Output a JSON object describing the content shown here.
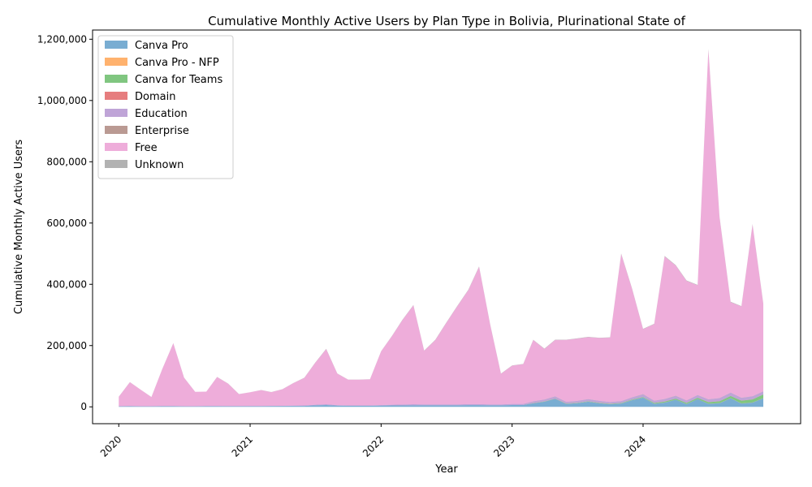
{
  "chart_data": {
    "type": "area",
    "stacked": true,
    "title": "Cumulative Monthly Active Users by Plan Type in Bolivia, Plurinational State of",
    "xlabel": "Year",
    "ylabel": "Cumulative Monthly Active Users",
    "xlim": [
      "2019-10-20",
      "2025-03-15"
    ],
    "ylim": [
      -55000,
      1230000
    ],
    "x_ticks": [
      {
        "date": "2020-01-01",
        "label": "2020"
      },
      {
        "date": "2021-01-01",
        "label": "2021"
      },
      {
        "date": "2022-01-01",
        "label": "2022"
      },
      {
        "date": "2023-01-01",
        "label": "2023"
      },
      {
        "date": "2024-01-01",
        "label": "2024"
      }
    ],
    "y_ticks": [
      {
        "value": 0,
        "label": "0"
      },
      {
        "value": 200000,
        "label": "200,000"
      },
      {
        "value": 400000,
        "label": "400,000"
      },
      {
        "value": 600000,
        "label": "600,000"
      },
      {
        "value": 800000,
        "label": "800,000"
      },
      {
        "value": 1000000,
        "label": "1,000,000"
      },
      {
        "value": 1200000,
        "label": "1,200,000"
      }
    ],
    "legend_position": "top-left",
    "x": [
      "2020-01",
      "2020-02",
      "2020-03",
      "2020-04",
      "2020-05",
      "2020-06",
      "2020-07",
      "2020-08",
      "2020-09",
      "2020-10",
      "2020-11",
      "2020-12",
      "2021-01",
      "2021-02",
      "2021-03",
      "2021-04",
      "2021-05",
      "2021-06",
      "2021-07",
      "2021-08",
      "2021-09",
      "2021-10",
      "2021-11",
      "2021-12",
      "2022-01",
      "2022-02",
      "2022-03",
      "2022-04",
      "2022-05",
      "2022-06",
      "2022-07",
      "2022-08",
      "2022-09",
      "2022-10",
      "2022-11",
      "2022-12",
      "2023-01",
      "2023-02",
      "2023-03",
      "2023-04",
      "2023-05",
      "2023-06",
      "2023-07",
      "2023-08",
      "2023-09",
      "2023-10",
      "2023-11",
      "2023-12",
      "2024-01",
      "2024-02",
      "2024-03",
      "2024-04",
      "2024-05",
      "2024-06",
      "2024-07",
      "2024-08",
      "2024-09",
      "2024-10",
      "2024-11",
      "2024-12"
    ],
    "series": [
      {
        "name": "Canva Pro",
        "color": "#1f77b4",
        "values": [
          1500,
          2000,
          1500,
          1500,
          2000,
          2000,
          1500,
          1500,
          2000,
          2000,
          2000,
          2000,
          2000,
          2000,
          2500,
          2500,
          3000,
          3000,
          5000,
          6000,
          4000,
          3500,
          3500,
          3500,
          4000,
          4500,
          4500,
          5000,
          5000,
          5000,
          5000,
          5000,
          5500,
          5500,
          5000,
          5000,
          6000,
          6000,
          12000,
          17000,
          26000,
          10000,
          12000,
          17000,
          12000,
          9000,
          11000,
          22000,
          30000,
          10000,
          14000,
          23000,
          9000,
          25000,
          10000,
          12000,
          28000,
          11000,
          14000,
          28000
        ]
      },
      {
        "name": "Canva Pro - NFP",
        "color": "#ff7f0e",
        "values": [
          0,
          0,
          0,
          0,
          0,
          0,
          0,
          0,
          0,
          0,
          0,
          0,
          0,
          0,
          0,
          0,
          0,
          0,
          0,
          0,
          0,
          0,
          0,
          0,
          0,
          0,
          0,
          0,
          0,
          0,
          0,
          0,
          0,
          0,
          0,
          0,
          0,
          0,
          200,
          200,
          200,
          200,
          200,
          200,
          200,
          200,
          200,
          200,
          300,
          300,
          300,
          300,
          300,
          300,
          300,
          300,
          300,
          300,
          300,
          300
        ]
      },
      {
        "name": "Canva for Teams",
        "color": "#2ca02c",
        "values": [
          0,
          0,
          0,
          0,
          0,
          0,
          0,
          0,
          0,
          0,
          0,
          0,
          0,
          0,
          0,
          0,
          0,
          0,
          0,
          0,
          0,
          0,
          0,
          0,
          0,
          0,
          0,
          0,
          0,
          0,
          0,
          0,
          0,
          0,
          0,
          0,
          0,
          0,
          500,
          600,
          700,
          800,
          900,
          1000,
          1100,
          1200,
          1300,
          1500,
          1800,
          2500,
          3000,
          3500,
          3500,
          4000,
          5000,
          6000,
          7000,
          9000,
          10000,
          12000
        ]
      },
      {
        "name": "Domain",
        "color": "#d62728",
        "values": [
          0,
          0,
          0,
          0,
          0,
          0,
          0,
          0,
          0,
          0,
          0,
          0,
          0,
          0,
          0,
          0,
          0,
          0,
          0,
          0,
          0,
          0,
          0,
          0,
          0,
          0,
          0,
          0,
          0,
          0,
          0,
          0,
          0,
          0,
          0,
          0,
          0,
          0,
          100,
          100,
          100,
          100,
          100,
          100,
          100,
          100,
          100,
          100,
          100,
          100,
          100,
          100,
          100,
          100,
          100,
          100,
          100,
          100,
          100,
          100
        ]
      },
      {
        "name": "Education",
        "color": "#9467bd",
        "values": [
          300,
          500,
          400,
          300,
          500,
          500,
          400,
          400,
          500,
          500,
          400,
          400,
          500,
          500,
          600,
          800,
          1000,
          1500,
          2000,
          2500,
          1500,
          1200,
          1200,
          1200,
          2000,
          2500,
          3000,
          3500,
          3000,
          3000,
          3000,
          3000,
          3500,
          3500,
          3000,
          3000,
          3500,
          3500,
          5000,
          6000,
          7000,
          5000,
          6000,
          7000,
          6000,
          5000,
          6000,
          7000,
          9000,
          7000,
          8000,
          9000,
          8000,
          9000,
          9000,
          10000,
          11000,
          9000,
          10000,
          10000
        ]
      },
      {
        "name": "Enterprise",
        "color": "#8c564b",
        "values": [
          0,
          0,
          0,
          0,
          0,
          0,
          0,
          0,
          0,
          0,
          0,
          0,
          0,
          0,
          0,
          0,
          0,
          0,
          0,
          0,
          0,
          0,
          0,
          0,
          0,
          0,
          0,
          0,
          0,
          0,
          0,
          0,
          0,
          0,
          0,
          0,
          0,
          0,
          300,
          300,
          300,
          300,
          300,
          300,
          300,
          300,
          300,
          300,
          400,
          400,
          400,
          400,
          400,
          400,
          400,
          400,
          400,
          400,
          400,
          400
        ]
      },
      {
        "name": "Free",
        "color": "#e377c2",
        "values": [
          31000,
          78000,
          55000,
          30000,
          120000,
          205000,
          93000,
          47000,
          47000,
          95000,
          73000,
          39000,
          45000,
          52000,
          45000,
          54000,
          73000,
          90000,
          136000,
          180000,
          103000,
          84000,
          84000,
          85000,
          175000,
          225000,
          275000,
          323000,
          175000,
          210000,
          265000,
          320000,
          372000,
          448000,
          260000,
          100000,
          125000,
          130000,
          200000,
          165000,
          184000,
          202000,
          203000,
          202000,
          205000,
          210000,
          480000,
          355000,
          212000,
          250000,
          465000,
          425000,
          390000,
          358000,
          1140000,
          590000,
          295000,
          298000,
          560000,
          285000
        ]
      },
      {
        "name": "Unknown",
        "color": "#7f7f7f",
        "values": [
          200,
          300,
          200,
          200,
          300,
          400,
          300,
          200,
          200,
          300,
          300,
          200,
          200,
          300,
          300,
          300,
          400,
          500,
          600,
          800,
          500,
          400,
          400,
          400,
          600,
          700,
          800,
          900,
          700,
          800,
          900,
          1000,
          1100,
          1200,
          900,
          500,
          600,
          600,
          800,
          800,
          900,
          900,
          900,
          900,
          900,
          900,
          1500,
          1200,
          1000,
          1000,
          1500,
          1400,
          1300,
          1200,
          3000,
          1800,
          1200,
          1200,
          1800,
          1200
        ]
      }
    ]
  }
}
